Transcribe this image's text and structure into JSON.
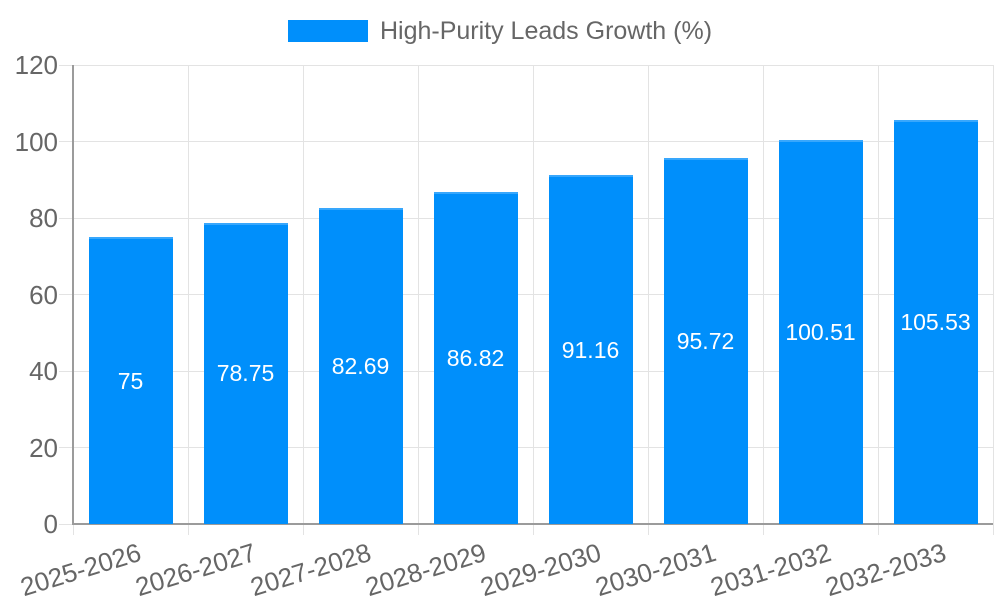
{
  "chart_data": {
    "type": "bar",
    "legend": "High-Purity Leads Growth (%)",
    "legend_position": "top",
    "categories": [
      "2025-2026",
      "2026-2027",
      "2027-2028",
      "2028-2029",
      "2029-2030",
      "2030-2031",
      "2031-2032",
      "2032-2033"
    ],
    "values": [
      75,
      78.75,
      82.69,
      86.82,
      91.16,
      95.72,
      100.51,
      105.53
    ],
    "value_labels": [
      "75",
      "78.75",
      "82.69",
      "86.82",
      "91.16",
      "95.72",
      "100.51",
      "105.53"
    ],
    "y_ticks": [
      0,
      20,
      40,
      60,
      80,
      100,
      120
    ],
    "ylim": [
      0,
      120
    ],
    "grid": true,
    "colors": {
      "bar": "#008FFB",
      "value_label": "#ffffff",
      "axis_label": "#666666",
      "grid_line": "#e3e3e3",
      "axis_line": "#9b9b9b",
      "background": "#ffffff"
    }
  }
}
